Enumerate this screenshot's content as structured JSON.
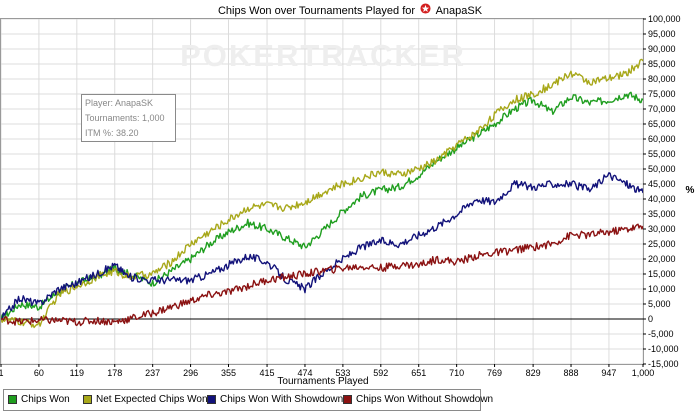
{
  "header": {
    "title": "Chips Won over Tournaments Played for",
    "player_name": "AnapaSK",
    "player_icon": "pokerstars-icon"
  },
  "watermark": "POKERTRACKER",
  "info_box": {
    "player": "Player: AnapaSK",
    "tournaments": "Tournaments: 1,000",
    "itm": "ITM %: 38.20"
  },
  "colors": {
    "chips_won": "#1f9e1f",
    "net_expected": "#a8a81a",
    "with_showdown": "#12127a",
    "without_showdown": "#8b1212",
    "grid": "#dcdcdc",
    "axis": "#000000"
  },
  "chart_data": {
    "type": "line",
    "title": "Chips Won over Tournaments Played for AnapaSK",
    "xlabel": "Tournaments Played",
    "ylabel": "",
    "y_right_label": "%",
    "xlim": [
      1,
      1000
    ],
    "ylim": [
      -15000,
      100000
    ],
    "x_ticks": [
      1,
      60,
      119,
      178,
      237,
      296,
      355,
      415,
      474,
      533,
      592,
      651,
      710,
      769,
      829,
      888,
      947,
      1000
    ],
    "x_tick_labels": [
      "1",
      "60",
      "119",
      "178",
      "237",
      "296",
      "355",
      "415",
      "474",
      "533",
      "592",
      "651",
      "710",
      "769",
      "829",
      "888",
      "947",
      "1,000"
    ],
    "y_ticks": [
      -15000,
      -10000,
      -5000,
      0,
      5000,
      10000,
      15000,
      20000,
      25000,
      30000,
      35000,
      40000,
      45000,
      50000,
      55000,
      60000,
      65000,
      70000,
      75000,
      80000,
      85000,
      90000,
      95000,
      100000
    ],
    "y_tick_labels": [
      "-15,000",
      "-10,000",
      "-5,000",
      "0",
      "5,000",
      "10,000",
      "15,000",
      "20,000",
      "25,000",
      "30,000",
      "35,000",
      "40,000",
      "45,000",
      "50,000",
      "55,000",
      "60,000",
      "65,000",
      "70,000",
      "75,000",
      "80,000",
      "85,000",
      "90,000",
      "95,000",
      "100,000"
    ],
    "grid": true,
    "legend_position": "bottom-left",
    "series": [
      {
        "name": "Chips Won",
        "color": "#1f9e1f",
        "x": [
          1,
          30,
          60,
          90,
          119,
          150,
          178,
          200,
          237,
          266,
          296,
          325,
          355,
          385,
          415,
          445,
          474,
          500,
          533,
          562,
          592,
          621,
          651,
          680,
          710,
          740,
          769,
          800,
          829,
          858,
          888,
          917,
          947,
          975,
          1000
        ],
        "y": [
          0,
          5000,
          4000,
          9000,
          12000,
          14000,
          17000,
          15000,
          12000,
          16000,
          20000,
          25000,
          29000,
          32000,
          30000,
          27000,
          24000,
          29000,
          36000,
          41000,
          43000,
          44000,
          48000,
          53000,
          57000,
          61000,
          65000,
          70000,
          73000,
          69000,
          74000,
          72000,
          73000,
          75000,
          73000
        ]
      },
      {
        "name": "Net Expected Chips Won",
        "color": "#a8a81a",
        "x": [
          1,
          30,
          60,
          90,
          119,
          150,
          178,
          200,
          237,
          266,
          296,
          325,
          355,
          385,
          415,
          445,
          474,
          500,
          533,
          562,
          592,
          621,
          651,
          680,
          710,
          740,
          769,
          800,
          829,
          858,
          888,
          917,
          947,
          975,
          1000
        ],
        "y": [
          0,
          -1000,
          -2000,
          8000,
          11000,
          14000,
          16000,
          14000,
          15000,
          19000,
          25000,
          29000,
          33000,
          37000,
          38000,
          37000,
          39000,
          42000,
          45000,
          47000,
          49000,
          48000,
          50000,
          53000,
          58000,
          62000,
          68000,
          73000,
          75000,
          78000,
          82000,
          79000,
          80000,
          82000,
          86000
        ]
      },
      {
        "name": "Chips Won With Showdown",
        "color": "#12127a",
        "x": [
          1,
          30,
          60,
          90,
          119,
          150,
          178,
          200,
          237,
          266,
          296,
          325,
          355,
          385,
          415,
          445,
          474,
          500,
          533,
          562,
          592,
          621,
          651,
          680,
          710,
          740,
          769,
          800,
          829,
          858,
          888,
          917,
          947,
          975,
          1000
        ],
        "y": [
          0,
          7000,
          5000,
          10000,
          12000,
          15000,
          18000,
          14000,
          13000,
          13000,
          13000,
          15000,
          18000,
          21000,
          19000,
          13000,
          10000,
          15000,
          20000,
          24000,
          26000,
          25000,
          28000,
          31000,
          35000,
          40000,
          39000,
          45000,
          44000,
          45000,
          45000,
          43000,
          48000,
          45000,
          42000
        ]
      },
      {
        "name": "Chips Won Without Showdown",
        "color": "#8b1212",
        "x": [
          1,
          30,
          60,
          90,
          119,
          150,
          178,
          200,
          237,
          266,
          296,
          325,
          355,
          385,
          415,
          445,
          474,
          500,
          533,
          562,
          592,
          621,
          651,
          680,
          710,
          740,
          769,
          800,
          829,
          858,
          888,
          917,
          947,
          975,
          1000
        ],
        "y": [
          0,
          -1000,
          -500,
          -500,
          -1000,
          -500,
          -1000,
          0,
          2000,
          4000,
          6000,
          8000,
          9000,
          11000,
          13000,
          14000,
          15000,
          16000,
          17000,
          17500,
          17000,
          18000,
          18000,
          20000,
          19000,
          21000,
          22000,
          23000,
          24000,
          25000,
          28000,
          28000,
          29000,
          30000,
          31000
        ]
      }
    ]
  }
}
